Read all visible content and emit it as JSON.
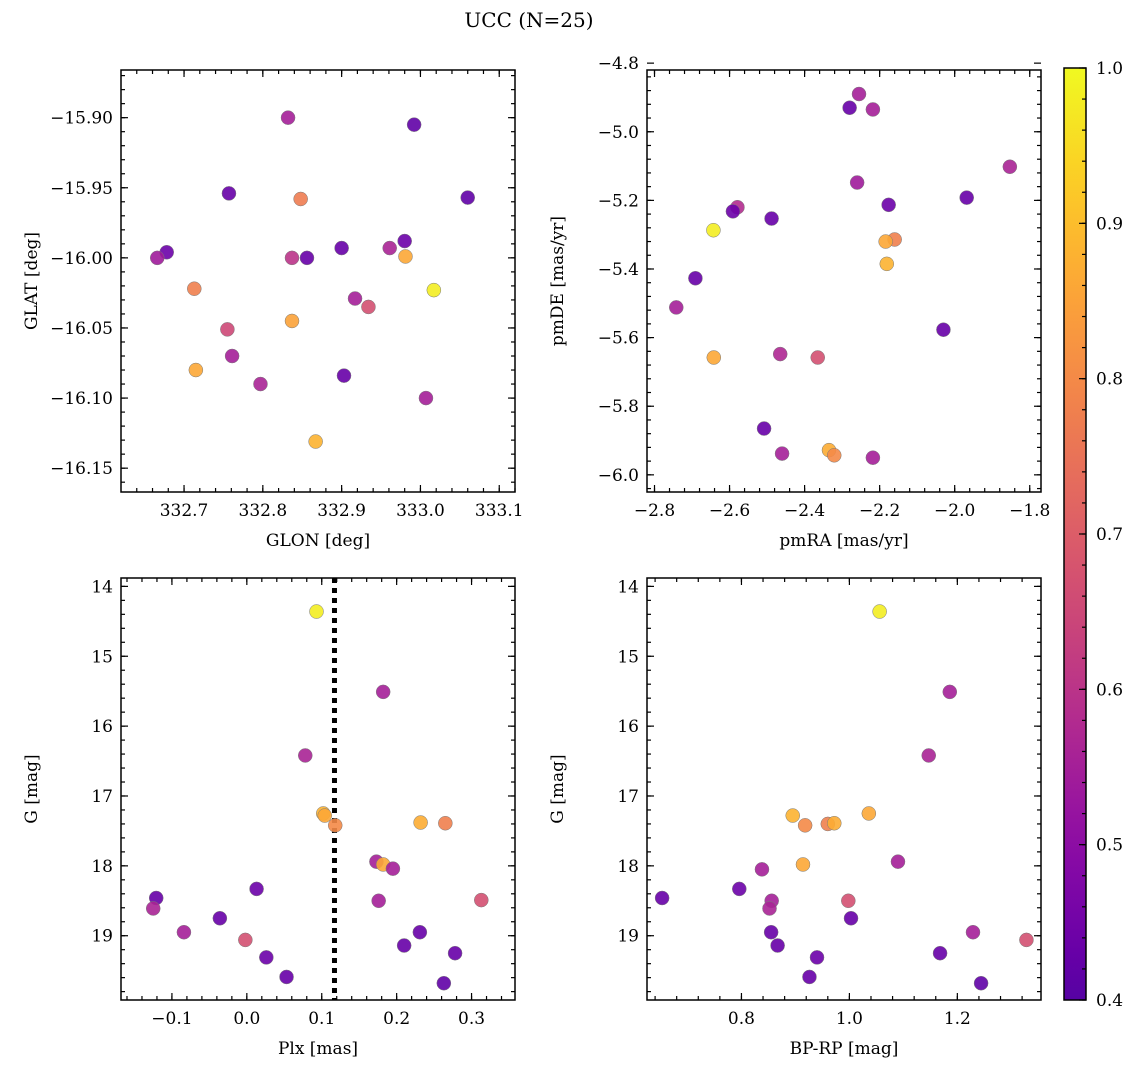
{
  "figure": {
    "title": "UCC (N=25)",
    "colormap": "plasma",
    "colorbar": {
      "vmin": 0.4,
      "vmax": 1.0,
      "ticks": [
        "0.4",
        "0.5",
        "0.6",
        "0.7",
        "0.8",
        "0.9",
        "1.0"
      ]
    }
  },
  "chart_data": [
    {
      "type": "scatter",
      "name": "glon-glat",
      "xlabel": "GLON [deg]",
      "ylabel": "GLAT [deg]",
      "xlim": [
        332.62,
        333.12
      ],
      "ylim": [
        -16.167,
        -15.866
      ],
      "xticks": [
        332.7,
        332.8,
        332.9,
        333.0,
        333.1
      ],
      "xtick_labels": [
        "332.7",
        "332.8",
        "332.9",
        "333.0",
        "333.1"
      ],
      "yticks": [
        -16.15,
        -16.1,
        -16.05,
        -16.0,
        -15.95,
        -15.9
      ],
      "ytick_labels": [
        "−16.15",
        "−16.10",
        "−16.05",
        "−16.00",
        "−15.95",
        "−15.90"
      ],
      "points": [
        {
          "x": 332.832,
          "y": -15.9,
          "c": 0.55
        },
        {
          "x": 332.992,
          "y": -15.905,
          "c": 0.42
        },
        {
          "x": 332.757,
          "y": -15.954,
          "c": 0.43
        },
        {
          "x": 332.848,
          "y": -15.958,
          "c": 0.77
        },
        {
          "x": 333.06,
          "y": -15.957,
          "c": 0.42
        },
        {
          "x": 332.678,
          "y": -15.996,
          "c": 0.44
        },
        {
          "x": 332.666,
          "y": -16.0,
          "c": 0.54
        },
        {
          "x": 332.9,
          "y": -15.993,
          "c": 0.43
        },
        {
          "x": 332.856,
          "y": -16.0,
          "c": 0.43
        },
        {
          "x": 332.837,
          "y": -16.0,
          "c": 0.6
        },
        {
          "x": 332.961,
          "y": -15.993,
          "c": 0.56
        },
        {
          "x": 332.98,
          "y": -15.988,
          "c": 0.44
        },
        {
          "x": 332.981,
          "y": -15.999,
          "c": 0.86
        },
        {
          "x": 333.017,
          "y": -16.023,
          "c": 0.98
        },
        {
          "x": 332.713,
          "y": -16.022,
          "c": 0.78
        },
        {
          "x": 332.917,
          "y": -16.029,
          "c": 0.55
        },
        {
          "x": 332.934,
          "y": -16.035,
          "c": 0.67
        },
        {
          "x": 332.837,
          "y": -16.045,
          "c": 0.85
        },
        {
          "x": 332.755,
          "y": -16.051,
          "c": 0.65
        },
        {
          "x": 332.761,
          "y": -16.07,
          "c": 0.55
        },
        {
          "x": 332.715,
          "y": -16.08,
          "c": 0.86
        },
        {
          "x": 332.903,
          "y": -16.084,
          "c": 0.43
        },
        {
          "x": 332.797,
          "y": -16.09,
          "c": 0.56
        },
        {
          "x": 333.007,
          "y": -16.1,
          "c": 0.55
        },
        {
          "x": 332.867,
          "y": -16.131,
          "c": 0.88
        }
      ]
    },
    {
      "type": "scatter",
      "name": "pmra-pmde",
      "xlabel": "pmRA [mas/yr]",
      "ylabel": "pmDE [mas/yr]",
      "xlim": [
        -2.82,
        -1.77
      ],
      "ylim": [
        -6.05,
        -4.82
      ],
      "xticks": [
        -2.8,
        -2.6,
        -2.4,
        -2.2,
        -2.0,
        -1.8
      ],
      "xtick_labels": [
        "−2.8",
        "−2.6",
        "−2.4",
        "−2.2",
        "−2.0",
        "−1.8"
      ],
      "yticks": [
        -6.0,
        -5.8,
        -5.6,
        -5.4,
        -5.2,
        -5.0,
        -4.8
      ],
      "ytick_labels": [
        "−6.0",
        "−5.8",
        "−5.6",
        "−5.4",
        "−5.2",
        "−5.0",
        "−4.8"
      ],
      "points": [
        {
          "x": -2.255,
          "y": -4.89,
          "c": 0.55
        },
        {
          "x": -2.28,
          "y": -4.93,
          "c": 0.43
        },
        {
          "x": -2.218,
          "y": -4.935,
          "c": 0.55
        },
        {
          "x": -1.853,
          "y": -5.102,
          "c": 0.56
        },
        {
          "x": -2.26,
          "y": -5.148,
          "c": 0.54
        },
        {
          "x": -1.968,
          "y": -5.192,
          "c": 0.43
        },
        {
          "x": -2.176,
          "y": -5.213,
          "c": 0.44
        },
        {
          "x": -2.579,
          "y": -5.22,
          "c": 0.58
        },
        {
          "x": -2.591,
          "y": -5.232,
          "c": 0.44
        },
        {
          "x": -2.488,
          "y": -5.253,
          "c": 0.43
        },
        {
          "x": -2.643,
          "y": -5.287,
          "c": 0.98
        },
        {
          "x": -2.16,
          "y": -5.314,
          "c": 0.78
        },
        {
          "x": -2.184,
          "y": -5.32,
          "c": 0.86
        },
        {
          "x": -2.181,
          "y": -5.385,
          "c": 0.88
        },
        {
          "x": -2.691,
          "y": -5.427,
          "c": 0.43
        },
        {
          "x": -2.742,
          "y": -5.512,
          "c": 0.55
        },
        {
          "x": -2.03,
          "y": -5.577,
          "c": 0.43
        },
        {
          "x": -2.465,
          "y": -5.648,
          "c": 0.57
        },
        {
          "x": -2.365,
          "y": -5.658,
          "c": 0.67
        },
        {
          "x": -2.642,
          "y": -5.658,
          "c": 0.86
        },
        {
          "x": -2.508,
          "y": -5.865,
          "c": 0.43
        },
        {
          "x": -2.335,
          "y": -5.928,
          "c": 0.87
        },
        {
          "x": -2.46,
          "y": -5.938,
          "c": 0.55
        },
        {
          "x": -2.321,
          "y": -5.943,
          "c": 0.8
        },
        {
          "x": -2.218,
          "y": -5.95,
          "c": 0.55
        }
      ]
    },
    {
      "type": "scatter",
      "name": "plx-g",
      "xlabel": "Plx [mas]",
      "ylabel": "G [mag]",
      "xlim": [
        -0.168,
        0.358
      ],
      "ylim": [
        19.92,
        13.88
      ],
      "xticks": [
        -0.1,
        0.0,
        0.1,
        0.2,
        0.3
      ],
      "xtick_labels": [
        "−0.1",
        "0.0",
        "0.1",
        "0.2",
        "0.3"
      ],
      "yticks": [
        14,
        15,
        16,
        17,
        18,
        19
      ],
      "ytick_labels": [
        "14",
        "15",
        "16",
        "17",
        "18",
        "19"
      ],
      "vline": {
        "x": 0.117,
        "style": "dotted",
        "color": "#000000"
      },
      "points": [
        {
          "x": 0.093,
          "y": 14.36,
          "c": 0.98
        },
        {
          "x": 0.182,
          "y": 15.51,
          "c": 0.55
        },
        {
          "x": 0.078,
          "y": 16.42,
          "c": 0.56
        },
        {
          "x": 0.102,
          "y": 17.25,
          "c": 0.88
        },
        {
          "x": 0.104,
          "y": 17.28,
          "c": 0.86
        },
        {
          "x": 0.118,
          "y": 17.42,
          "c": 0.8
        },
        {
          "x": 0.232,
          "y": 17.38,
          "c": 0.87
        },
        {
          "x": 0.265,
          "y": 17.39,
          "c": 0.78
        },
        {
          "x": 0.173,
          "y": 17.94,
          "c": 0.55
        },
        {
          "x": 0.182,
          "y": 17.98,
          "c": 0.86
        },
        {
          "x": 0.195,
          "y": 18.04,
          "c": 0.55
        },
        {
          "x": 0.013,
          "y": 18.33,
          "c": 0.44
        },
        {
          "x": -0.121,
          "y": 18.46,
          "c": 0.43
        },
        {
          "x": 0.176,
          "y": 18.5,
          "c": 0.55
        },
        {
          "x": 0.313,
          "y": 18.49,
          "c": 0.67
        },
        {
          "x": -0.125,
          "y": 18.61,
          "c": 0.56
        },
        {
          "x": -0.036,
          "y": 18.75,
          "c": 0.43
        },
        {
          "x": -0.084,
          "y": 18.95,
          "c": 0.55
        },
        {
          "x": 0.231,
          "y": 18.95,
          "c": 0.43
        },
        {
          "x": -0.002,
          "y": 19.06,
          "c": 0.67
        },
        {
          "x": 0.21,
          "y": 19.14,
          "c": 0.43
        },
        {
          "x": 0.278,
          "y": 19.25,
          "c": 0.43
        },
        {
          "x": 0.026,
          "y": 19.31,
          "c": 0.44
        },
        {
          "x": 0.053,
          "y": 19.59,
          "c": 0.43
        },
        {
          "x": 0.263,
          "y": 19.68,
          "c": 0.42
        }
      ]
    },
    {
      "type": "scatter",
      "name": "bprp-g",
      "xlabel": "BP-RP [mag]",
      "ylabel": "G [mag]",
      "xlim": [
        0.625,
        1.355
      ],
      "ylim": [
        19.92,
        13.88
      ],
      "xticks": [
        0.8,
        1.0,
        1.2
      ],
      "xtick_labels": [
        "0.8",
        "1.0",
        "1.2"
      ],
      "yticks": [
        14,
        15,
        16,
        17,
        18,
        19
      ],
      "ytick_labels": [
        "14",
        "15",
        "16",
        "17",
        "18",
        "19"
      ],
      "points": [
        {
          "x": 1.056,
          "y": 14.36,
          "c": 0.98
        },
        {
          "x": 1.186,
          "y": 15.51,
          "c": 0.55
        },
        {
          "x": 1.147,
          "y": 16.42,
          "c": 0.56
        },
        {
          "x": 0.895,
          "y": 17.28,
          "c": 0.88
        },
        {
          "x": 0.918,
          "y": 17.42,
          "c": 0.8
        },
        {
          "x": 0.96,
          "y": 17.4,
          "c": 0.78
        },
        {
          "x": 0.972,
          "y": 17.39,
          "c": 0.87
        },
        {
          "x": 1.036,
          "y": 17.25,
          "c": 0.86
        },
        {
          "x": 0.914,
          "y": 17.98,
          "c": 0.86
        },
        {
          "x": 1.09,
          "y": 17.94,
          "c": 0.55
        },
        {
          "x": 0.838,
          "y": 18.05,
          "c": 0.55
        },
        {
          "x": 0.796,
          "y": 18.33,
          "c": 0.44
        },
        {
          "x": 0.653,
          "y": 18.46,
          "c": 0.43
        },
        {
          "x": 0.856,
          "y": 18.5,
          "c": 0.55
        },
        {
          "x": 0.852,
          "y": 18.61,
          "c": 0.56
        },
        {
          "x": 0.998,
          "y": 18.5,
          "c": 0.67
        },
        {
          "x": 1.003,
          "y": 18.75,
          "c": 0.43
        },
        {
          "x": 0.855,
          "y": 18.95,
          "c": 0.43
        },
        {
          "x": 1.229,
          "y": 18.95,
          "c": 0.55
        },
        {
          "x": 1.328,
          "y": 19.06,
          "c": 0.67
        },
        {
          "x": 0.867,
          "y": 19.14,
          "c": 0.43
        },
        {
          "x": 1.168,
          "y": 19.25,
          "c": 0.43
        },
        {
          "x": 0.94,
          "y": 19.31,
          "c": 0.44
        },
        {
          "x": 0.926,
          "y": 19.59,
          "c": 0.43
        },
        {
          "x": 1.244,
          "y": 19.68,
          "c": 0.42
        }
      ]
    }
  ]
}
